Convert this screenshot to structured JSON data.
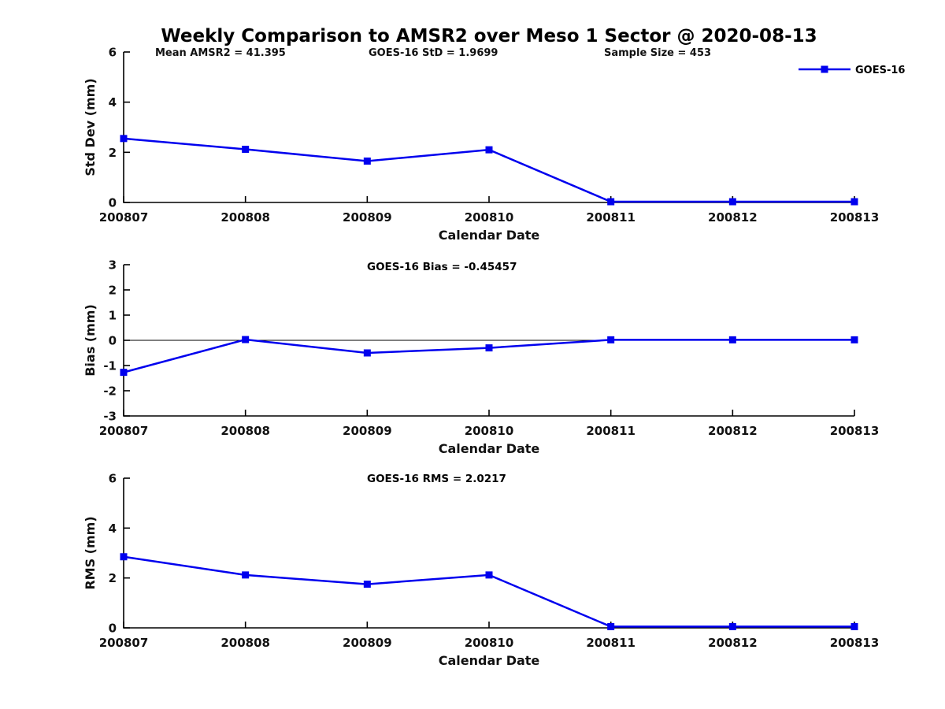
{
  "title": "Weekly Comparison to AMSR2 over Meso 1 Sector @ 2020-08-13",
  "header_stats": {
    "mean_amsr2": "Mean AMSR2 = 41.395",
    "goes16_std": "GOES-16 StD = 1.9699",
    "sample_size": "Sample Size = 453"
  },
  "legend": {
    "label": "GOES-16",
    "position": "top-right"
  },
  "colors": {
    "series": "#0000ee",
    "axis": "#000000",
    "text": "#111111"
  },
  "chart_data": [
    {
      "type": "line",
      "name": "std-dev-panel",
      "annotation": "",
      "xlabel": "Calendar Date",
      "ylabel": "Std Dev (mm)",
      "ylim": [
        0,
        6
      ],
      "yticks": [
        0,
        2,
        4,
        6
      ],
      "grid": false,
      "categories": [
        "200807",
        "200808",
        "200809",
        "200810",
        "200811",
        "200812",
        "200813"
      ],
      "series": [
        {
          "name": "GOES-16",
          "values": [
            2.55,
            2.12,
            1.65,
            2.1,
            0.03,
            0.03,
            0.03
          ]
        }
      ]
    },
    {
      "type": "line",
      "name": "bias-panel",
      "annotation": "GOES-16 Bias  = -0.45457",
      "xlabel": "Calendar Date",
      "ylabel": "Bias (mm)",
      "ylim": [
        -3,
        3
      ],
      "yticks": [
        3,
        2,
        1,
        0,
        -1,
        -2,
        -3
      ],
      "zeroline": true,
      "grid": false,
      "categories": [
        "200807",
        "200808",
        "200809",
        "200810",
        "200811",
        "200812",
        "200813"
      ],
      "series": [
        {
          "name": "GOES-16",
          "values": [
            -1.27,
            0.03,
            -0.5,
            -0.3,
            0.02,
            0.02,
            0.02
          ]
        }
      ]
    },
    {
      "type": "line",
      "name": "rms-panel",
      "annotation": "GOES-16 RMS = 2.0217",
      "xlabel": "Calendar Date",
      "ylabel": "RMS (mm)",
      "ylim": [
        0,
        6
      ],
      "yticks": [
        0,
        2,
        4,
        6
      ],
      "grid": false,
      "categories": [
        "200807",
        "200808",
        "200809",
        "200810",
        "200811",
        "200812",
        "200813"
      ],
      "series": [
        {
          "name": "GOES-16",
          "values": [
            2.85,
            2.12,
            1.75,
            2.12,
            0.05,
            0.05,
            0.05
          ]
        }
      ]
    }
  ]
}
